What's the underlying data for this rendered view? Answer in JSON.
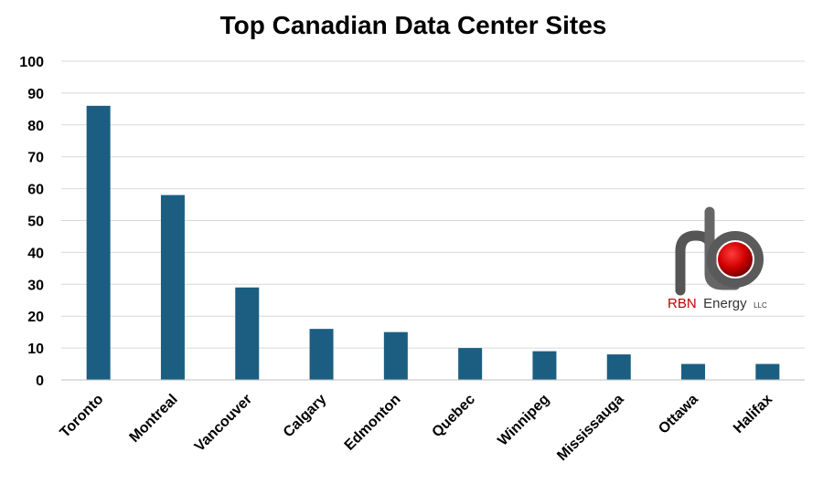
{
  "chart_data": {
    "type": "bar",
    "title": "Top Canadian Data Center Sites",
    "xlabel": "",
    "ylabel": "",
    "ylim": [
      0,
      100
    ],
    "yticks": [
      0,
      10,
      20,
      30,
      40,
      50,
      60,
      70,
      80,
      90,
      100
    ],
    "categories": [
      "Toronto",
      "Montreal",
      "Vancouver",
      "Calgary",
      "Edmonton",
      "Quebec",
      "Winnipeg",
      "Mississauga",
      "Ottawa",
      "Halifax"
    ],
    "values": [
      86,
      58,
      29,
      16,
      15,
      10,
      9,
      8,
      5,
      5
    ],
    "bar_color": "#1b5e82",
    "grid": true,
    "legend": "none"
  },
  "logo": {
    "brand": "RBN",
    "name": "Energy",
    "suffix": "LLC",
    "brand_color": "#c00000",
    "icon": "rbn-pipe-logo-icon"
  }
}
